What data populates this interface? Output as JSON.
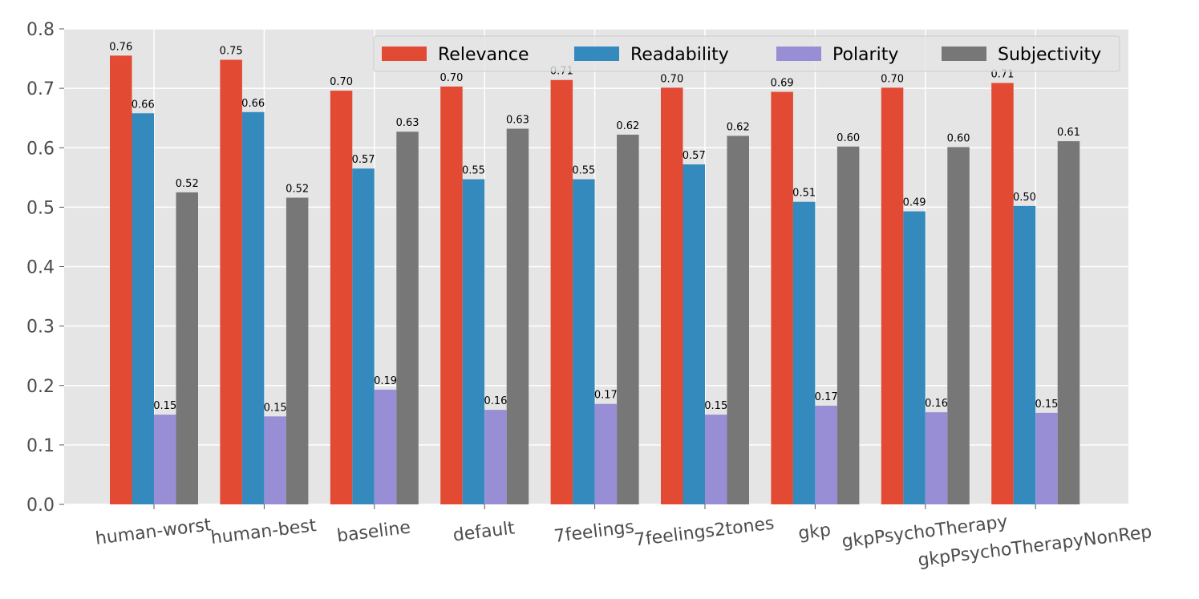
{
  "chart_data": {
    "type": "bar",
    "title": "",
    "xlabel": "",
    "ylabel": "",
    "ylim": [
      0,
      0.8
    ],
    "yticks": [
      "0.0",
      "0.1",
      "0.2",
      "0.3",
      "0.4",
      "0.5",
      "0.6",
      "0.7",
      "0.8"
    ],
    "grid": true,
    "legend_position": "top-right",
    "categories": [
      "human-worst",
      "human-best",
      "baseline",
      "default",
      "7feelings",
      "7feelings2tones",
      "gkp",
      "gkpPsychoTherapy",
      "gkpPsychoTherapyNonRep"
    ],
    "series": [
      {
        "name": "Relevance",
        "color": "#e24a33",
        "values": [
          0.755,
          0.748,
          0.696,
          0.703,
          0.714,
          0.701,
          0.694,
          0.701,
          0.709
        ],
        "labels": [
          "0.76",
          "0.75",
          "0.70",
          "0.70",
          "0.71",
          "0.70",
          "0.69",
          "0.70",
          "0.71"
        ]
      },
      {
        "name": "Readability",
        "color": "#348abd",
        "values": [
          0.658,
          0.66,
          0.565,
          0.547,
          0.547,
          0.572,
          0.509,
          0.493,
          0.502
        ],
        "labels": [
          "0.66",
          "0.66",
          "0.57",
          "0.55",
          "0.55",
          "0.57",
          "0.51",
          "0.49",
          "0.50"
        ]
      },
      {
        "name": "Polarity",
        "color": "#988ed5",
        "values": [
          0.151,
          0.148,
          0.193,
          0.159,
          0.169,
          0.151,
          0.166,
          0.155,
          0.154
        ],
        "labels": [
          "0.15",
          "0.15",
          "0.19",
          "0.16",
          "0.17",
          "0.15",
          "0.17",
          "0.16",
          "0.15"
        ]
      },
      {
        "name": "Subjectivity",
        "color": "#777777",
        "values": [
          0.525,
          0.516,
          0.627,
          0.632,
          0.622,
          0.62,
          0.602,
          0.601,
          0.611
        ],
        "labels": [
          "0.52",
          "0.52",
          "0.63",
          "0.63",
          "0.62",
          "0.62",
          "0.60",
          "0.60",
          "0.61"
        ]
      }
    ]
  }
}
